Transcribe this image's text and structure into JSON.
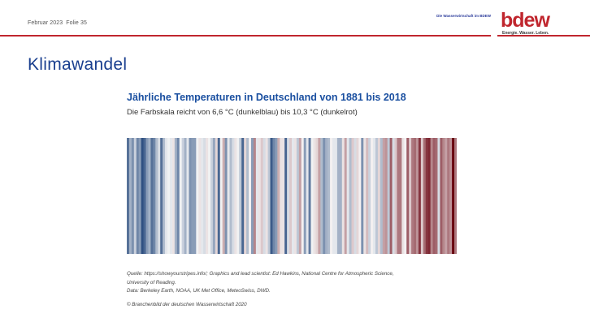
{
  "header": {
    "date": "Februar 2023",
    "slide_label": "Folie 35",
    "tagline": "Die Wasserwirtschaft im BDEW",
    "logo_text": "bdew",
    "logo_claim": "Energie. Wasser. Leben."
  },
  "title": "Klimawandel",
  "figure": {
    "title": "Jährliche Temperaturen in Deutschland von 1881 bis 2018",
    "subtitle": "Die Farbskala reicht von 6,6 °C (dunkelblau) bis 10,3 °C (dunkelrot)",
    "source_lines": [
      "Quelle: https://showyourstripes.info/; Graphics and lead scientist: Ed Hawkins, National Centre for Atmospheric Science,",
      "University of Reading.",
      "Data: Berkeley Earth, NOAA, UK Met Office, MeteoSwiss, DWD."
    ],
    "copyright": "© Branchenbild der deutschen Wasserwirtschaft 2020"
  },
  "chart_data": {
    "type": "heatmap",
    "title": "Jährliche Temperaturen in Deutschland von 1881 bis 2018",
    "x_start": 1881,
    "x_end": 2018,
    "value_unit": "°C",
    "color_range": [
      6.6,
      10.3
    ],
    "color_low": "#08306b",
    "color_mid": "#f7f7f7",
    "color_high": "#67000d",
    "values": [
      7.2,
      7.8,
      7.5,
      8.1,
      7.4,
      7.6,
      6.9,
      7.1,
      7.6,
      7.8,
      7.2,
      7.4,
      7.9,
      8.2,
      7.2,
      7.9,
      8.3,
      8.4,
      8.3,
      8.6,
      7.8,
      7.4,
      8.4,
      8.1,
      7.8,
      8.3,
      7.5,
      7.6,
      7.6,
      8.4,
      8.6,
      8.3,
      8.2,
      8.6,
      8.4,
      8.1,
      7.7,
      8.7,
      7.1,
      8.4,
      9.0,
      7.5,
      8.3,
      7.9,
      8.2,
      8.6,
      8.4,
      8.0,
      7.1,
      8.7,
      7.9,
      8.5,
      7.6,
      9.3,
      8.3,
      8.6,
      8.8,
      8.2,
      8.6,
      8.0,
      7.0,
      7.4,
      7.6,
      9.0,
      8.6,
      8.6,
      7.1,
      8.2,
      8.8,
      8.3,
      8.6,
      8.0,
      9.1,
      8.5,
      7.6,
      8.3,
      7.3,
      8.4,
      8.6,
      8.7,
      9.1,
      7.9,
      7.5,
      7.8,
      7.9,
      8.5,
      8.3,
      8.3,
      7.8,
      7.8,
      8.6,
      9.1,
      8.3,
      7.9,
      8.8,
      8.2,
      8.7,
      8.5,
      7.5,
      8.6,
      8.9,
      8.1,
      8.5,
      8.3,
      8.0,
      8.7,
      7.9,
      9.1,
      9.2,
      8.0,
      9.6,
      8.2,
      8.8,
      9.4,
      9.4,
      8.6,
      8.5,
      9.6,
      8.8,
      9.4,
      9.5,
      9.2,
      9.9,
      8.8,
      9.5,
      9.9,
      10.0,
      9.3,
      9.6,
      9.5,
      8.2,
      9.6,
      9.3,
      9.1,
      9.4,
      9.2,
      10.3,
      9.4
    ]
  }
}
